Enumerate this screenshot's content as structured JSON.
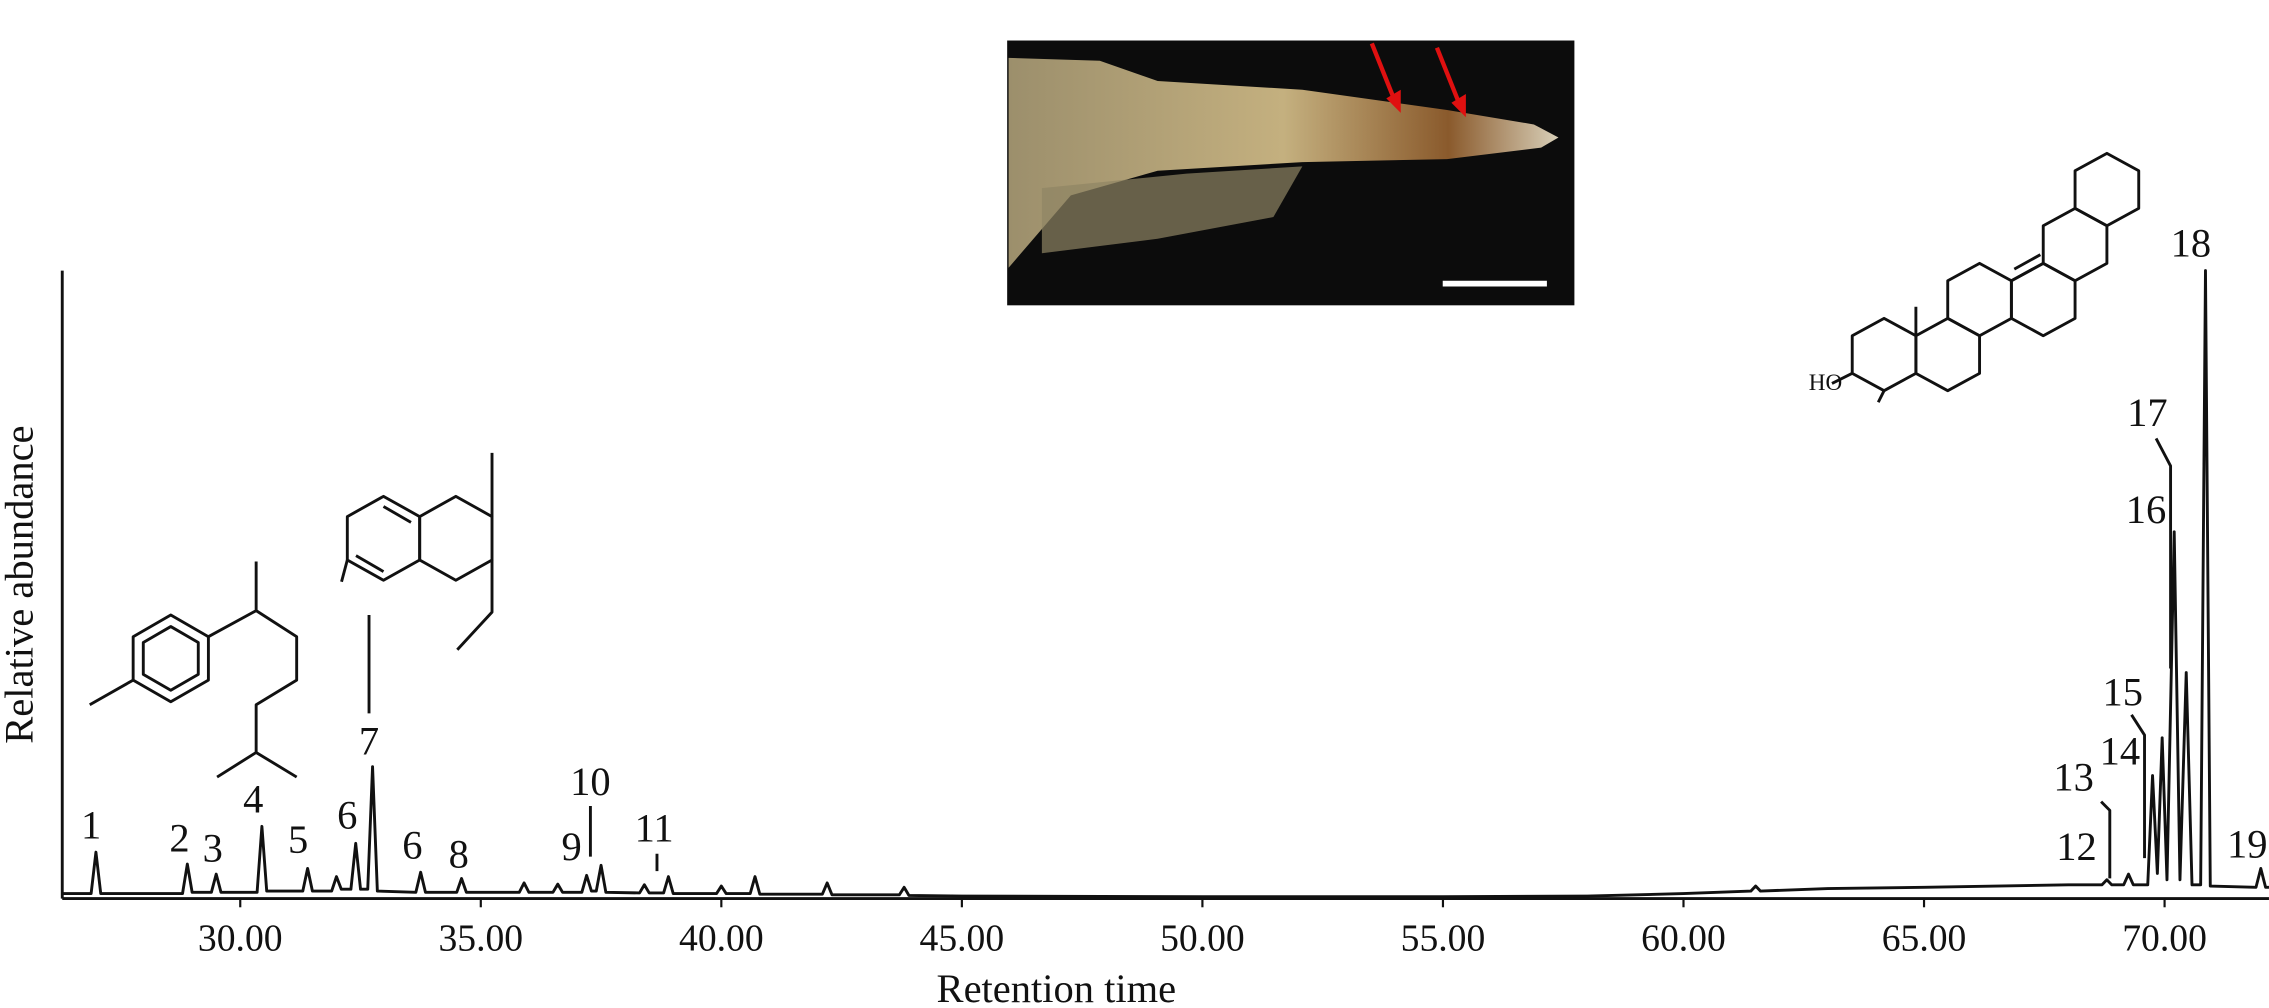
{
  "chart_data": {
    "type": "line",
    "x_label": "Retention time",
    "y_label": "Relative abundance",
    "xlim": [
      26.3,
      72.17
    ],
    "ylim": [
      0,
      100
    ],
    "xticks": [
      {
        "value": 30,
        "label": "30.00"
      },
      {
        "value": 35,
        "label": "35.00"
      },
      {
        "value": 40,
        "label": "40.00"
      },
      {
        "value": 45,
        "label": "45.00"
      },
      {
        "value": 50,
        "label": "50.00"
      },
      {
        "value": 55,
        "label": "55.00"
      },
      {
        "value": 60,
        "label": "60.00"
      },
      {
        "value": 65,
        "label": "65.00"
      },
      {
        "value": 70,
        "label": "70.00"
      }
    ],
    "color": "#111111",
    "x": [
      26.3,
      26.9,
      27.0,
      27.1,
      28.2,
      28.8,
      28.9,
      29.0,
      29.4,
      29.5,
      29.6,
      30.35,
      30.45,
      30.55,
      31.3,
      31.4,
      31.5,
      31.9,
      32.0,
      32.1,
      32.3,
      32.4,
      32.5,
      32.65,
      32.75,
      32.85,
      33.65,
      33.75,
      33.85,
      34.5,
      34.6,
      34.7,
      35.8,
      35.9,
      36.0,
      36.5,
      36.6,
      36.7,
      37.1,
      37.2,
      37.3,
      37.4,
      37.5,
      37.6,
      38.3,
      38.4,
      38.5,
      38.8,
      38.9,
      39.0,
      39.9,
      40.0,
      40.1,
      40.6,
      40.7,
      40.8,
      42.1,
      42.2,
      42.3,
      43.7,
      43.8,
      43.9,
      45.0,
      50.0,
      55.0,
      58.0,
      60.0,
      61.4,
      61.5,
      61.6,
      63.0,
      65.0,
      68.0,
      68.7,
      68.8,
      68.9,
      69.15,
      69.25,
      69.35,
      69.65,
      69.75,
      69.85,
      69.95,
      70.05,
      70.2,
      70.32,
      70.45,
      70.57,
      70.75,
      70.85,
      70.95,
      71.9,
      72.0,
      72.1,
      72.17
    ],
    "values": [
      0.8,
      0.8,
      7.4,
      0.8,
      0.8,
      0.8,
      5.5,
      1.0,
      1.0,
      3.9,
      1.0,
      1.0,
      11.5,
      1.2,
      1.2,
      4.8,
      1.2,
      1.2,
      3.5,
      1.5,
      1.5,
      8.8,
      1.5,
      1.5,
      21,
      1.2,
      1.0,
      4.2,
      1.0,
      1.0,
      3.2,
      1.0,
      1.0,
      2.5,
      1.0,
      1.0,
      2.3,
      1.0,
      1.0,
      3.7,
      1.2,
      1.2,
      5.3,
      1.0,
      0.9,
      2.2,
      0.9,
      0.9,
      3.5,
      0.8,
      0.8,
      2.0,
      0.8,
      0.8,
      3.5,
      0.7,
      0.7,
      2.5,
      0.6,
      0.6,
      1.8,
      0.5,
      0.4,
      0.3,
      0.3,
      0.4,
      0.8,
      1.2,
      2.0,
      1.2,
      1.6,
      1.8,
      2.2,
      2.2,
      3.0,
      2.2,
      2.2,
      3.9,
      2.2,
      2.2,
      19.6,
      4.0,
      25.6,
      3.0,
      58.4,
      3.0,
      36,
      2.2,
      2.2,
      100,
      2.0,
      1.8,
      4.8,
      1.8,
      1.8
    ],
    "peak_labels": [
      "1",
      "2",
      "3",
      "4",
      "5",
      "6",
      "7",
      "6",
      "8",
      "9",
      "10",
      "11",
      "12",
      "13",
      "14",
      "15",
      "16",
      "17",
      "18",
      "19"
    ],
    "structure_label": "HO"
  }
}
